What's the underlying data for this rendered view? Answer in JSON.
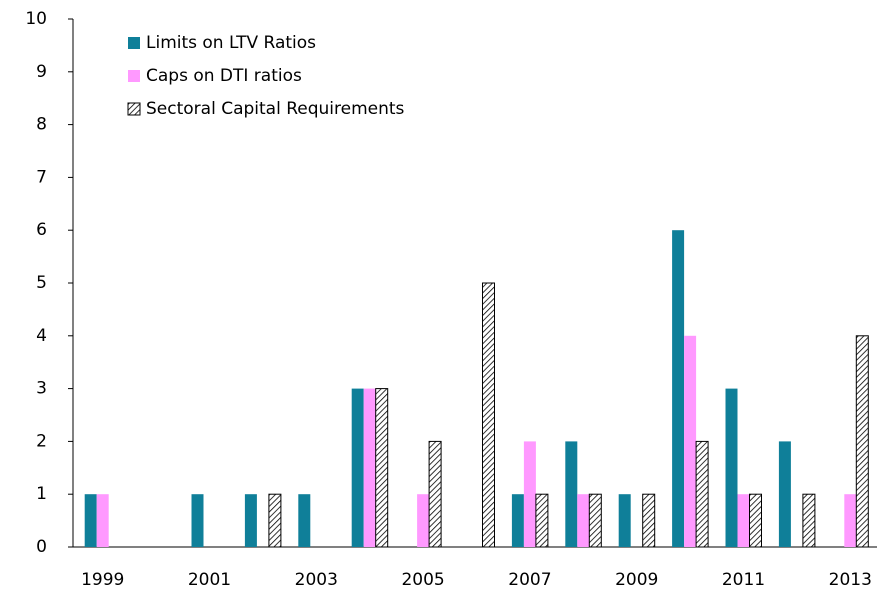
{
  "chart_data": {
    "type": "bar",
    "categories": [
      "1999",
      null,
      "2001",
      null,
      "2003",
      null,
      "2005",
      null,
      "2007",
      null,
      "2009",
      null,
      "2011",
      null,
      "2013"
    ],
    "series": [
      {
        "name": "Limits on LTV Ratios",
        "color": "#0f7f99",
        "values": [
          1,
          0,
          1,
          1,
          1,
          3,
          0,
          0,
          1,
          2,
          1,
          6,
          3,
          2,
          0
        ]
      },
      {
        "name": "Caps on DTI ratios",
        "color": "#ff99ff",
        "values": [
          1,
          0,
          0,
          0,
          0,
          3,
          1,
          0,
          2,
          1,
          0,
          4,
          1,
          0,
          1
        ]
      },
      {
        "name": "Sectoral Capital Requirements",
        "color": "#000000",
        "pattern": "hatch",
        "values": [
          0,
          0,
          0,
          1,
          0,
          3,
          2,
          5,
          1,
          1,
          1,
          2,
          1,
          1,
          4
        ]
      }
    ],
    "ylim": [
      0,
      10
    ],
    "yticks": [
      0,
      1,
      2,
      3,
      4,
      5,
      6,
      7,
      8,
      9,
      10
    ],
    "grid": false,
    "legend": "top-left"
  }
}
